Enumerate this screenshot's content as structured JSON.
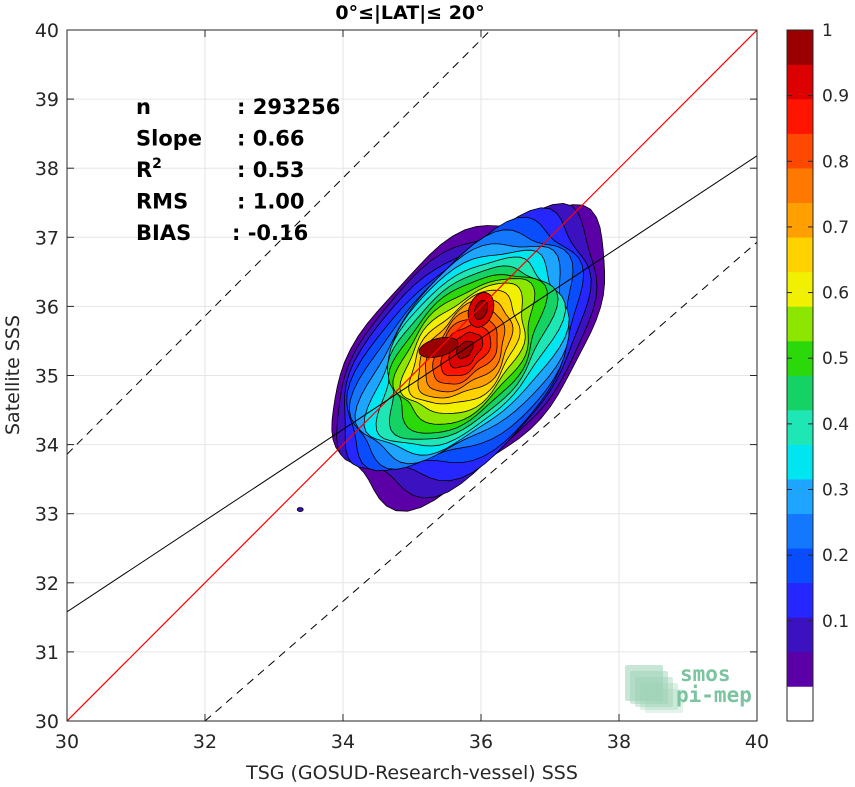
{
  "chart_data": {
    "type": "contour-density-scatter",
    "title": "0°≤|LAT|≤ 20°",
    "xlabel": "TSG (GOSUD-Research-vessel) SSS",
    "ylabel": "Satellite SSS",
    "xlim": [
      30,
      40
    ],
    "ylim": [
      30,
      40
    ],
    "xticks": [
      "30",
      "32",
      "34",
      "36",
      "38",
      "40"
    ],
    "yticks": [
      "30",
      "31",
      "32",
      "33",
      "34",
      "35",
      "36",
      "37",
      "38",
      "39",
      "40"
    ],
    "grid": true,
    "stats": [
      {
        "label": "n",
        "value": ": 293256"
      },
      {
        "label": "Slope",
        "value": ": 0.66"
      },
      {
        "label": "R",
        "sup": "2",
        "value": ": 0.53"
      },
      {
        "label": "RMS",
        "value": ": 1.00"
      },
      {
        "label": "BIAS",
        "value": ": -0.16"
      }
    ],
    "lines": {
      "identity": {
        "slope": 1,
        "intercept": 0,
        "color": "#ff0000"
      },
      "fit": {
        "slope": 0.66,
        "x0": 30,
        "y0": 31.58,
        "color": "#000000"
      },
      "bounds_offset": 3
    },
    "density_peak": [
      35.5,
      35.45
    ],
    "secondary_peak": [
      36.0,
      35.95
    ],
    "colorbar": {
      "ticks": [
        "0.1",
        "0.2",
        "0.3",
        "0.4",
        "0.5",
        "0.6",
        "0.7",
        "0.8",
        "0.9",
        "1"
      ],
      "levels": [
        "#ffffff",
        "#5b00a6",
        "#3c12c0",
        "#2626ff",
        "#0a4dff",
        "#1478ff",
        "#1ea5ff",
        "#00e6f0",
        "#1ee6b4",
        "#14d264",
        "#2bd80a",
        "#8ce600",
        "#f0f000",
        "#ffd200",
        "#ffa000",
        "#ff7800",
        "#ff4800",
        "#ff1400",
        "#dd0000",
        "#9a0000"
      ]
    },
    "logo": {
      "line1": "smos",
      "line2": "pi-mep"
    }
  }
}
